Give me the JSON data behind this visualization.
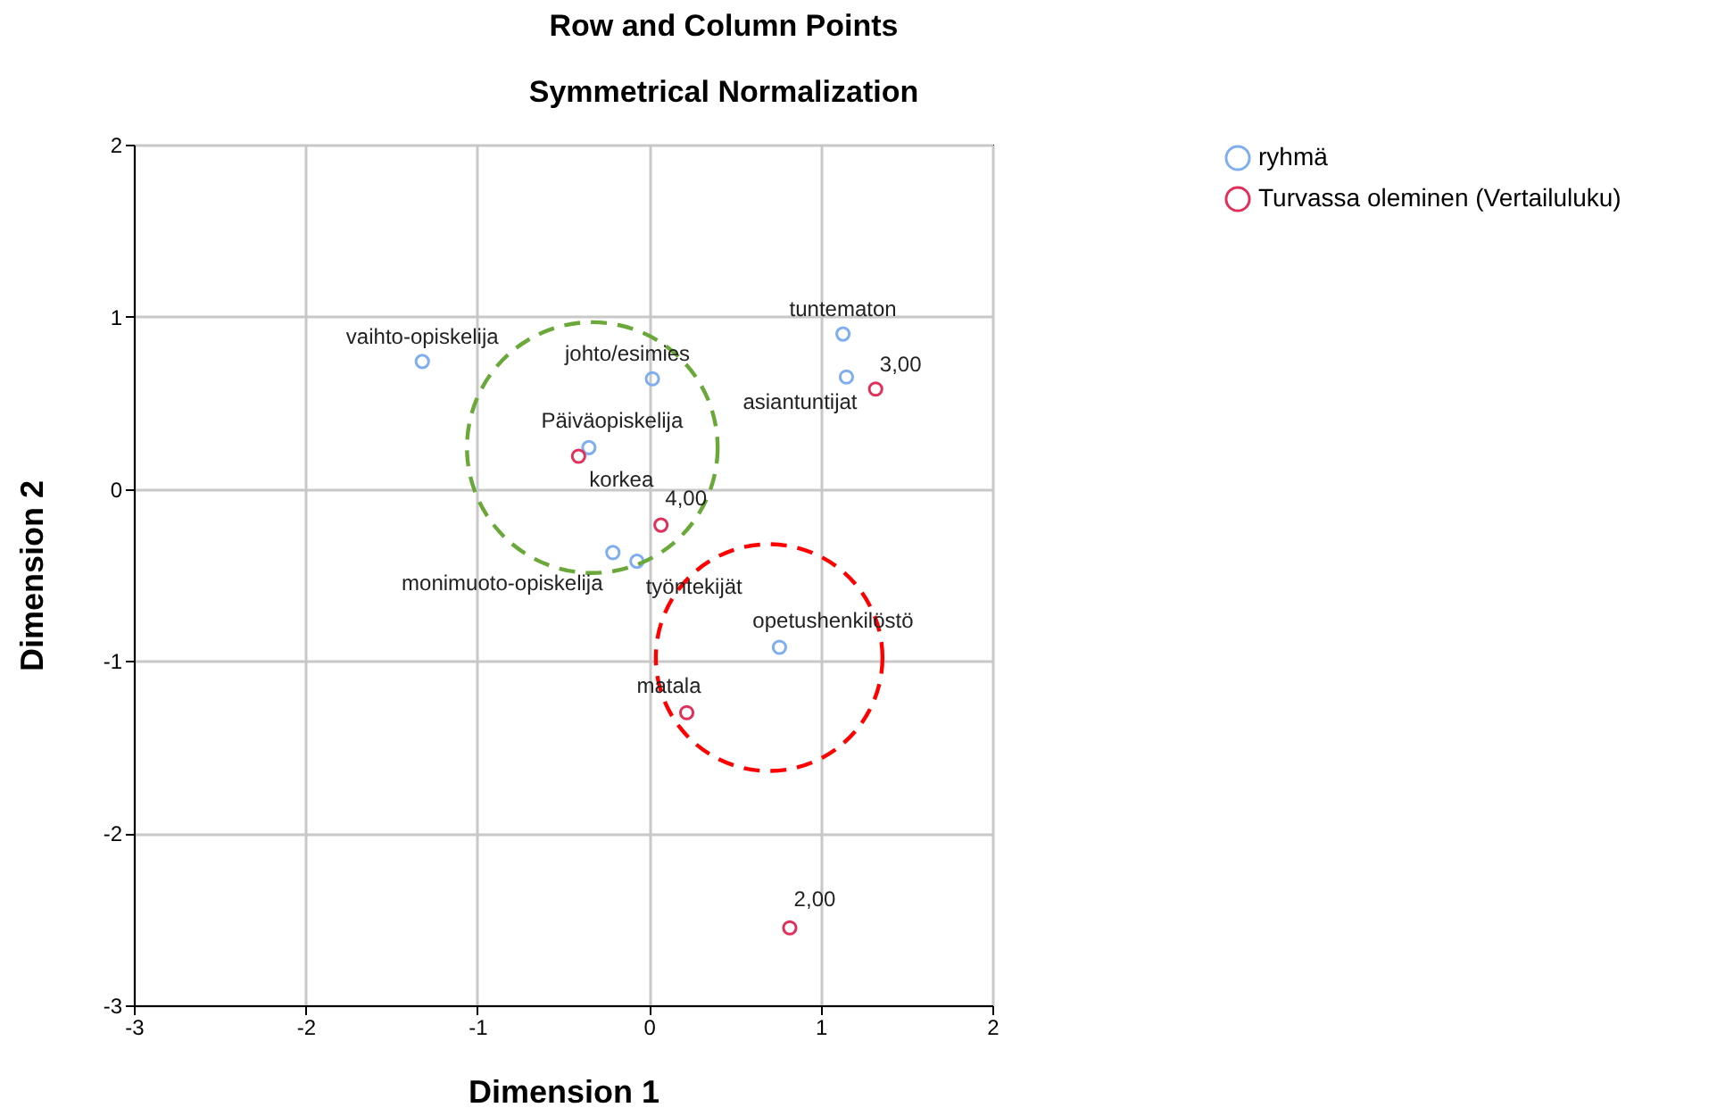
{
  "chart_data": {
    "type": "scatter",
    "title": "Row and Column Points",
    "subtitle": "Symmetrical Normalization",
    "xlabel": "Dimension 1",
    "ylabel": "Dimension 2",
    "series": [
      {
        "name": "ryhmä",
        "color": "#7eaef0",
        "x": [
          -1.32,
          0.02,
          1.13,
          1.15,
          -0.35,
          -0.21,
          -0.07,
          0.76
        ],
        "values": [
          0.74,
          0.64,
          0.9,
          0.65,
          0.24,
          -0.37,
          -0.42,
          -0.92
        ]
      },
      {
        "name": "Turvassa oleminen (Vertailuluku)",
        "color": "#e0305a",
        "x": [
          1.32,
          -0.41,
          0.07,
          0.22,
          0.82
        ],
        "values": [
          0.58,
          0.19,
          -0.21,
          -1.3,
          -2.55
        ]
      }
    ],
    "annotations": [
      {
        "text": "vaihto-opiskelija",
        "x": -1.32,
        "y": 0.74
      },
      {
        "text": "johto/esimies",
        "x": 0.02,
        "y": 0.64
      },
      {
        "text": "tuntematon",
        "x": 1.13,
        "y": 0.9
      },
      {
        "text": "asiantuntijat",
        "x": 1.15,
        "y": 0.65
      },
      {
        "text": "Päiväopiskelija",
        "x": -0.35,
        "y": 0.24
      },
      {
        "text": "monimuoto-opiskelija",
        "x": -0.21,
        "y": -0.37
      },
      {
        "text": "työntekijät",
        "x": -0.07,
        "y": -0.42
      },
      {
        "text": "opetushenkilöstö",
        "x": 0.76,
        "y": -0.92
      },
      {
        "text": "3,00",
        "x": 1.32,
        "y": 0.58
      },
      {
        "text": "korkea",
        "x": -0.41,
        "y": 0.19
      },
      {
        "text": "4,00",
        "x": 0.07,
        "y": -0.21
      },
      {
        "text": "matala",
        "x": 0.22,
        "y": -1.3
      },
      {
        "text": "2,00",
        "x": 0.82,
        "y": -2.55
      }
    ],
    "xlim": [
      -3,
      2
    ],
    "xticks": [
      -3,
      -2,
      -1,
      0,
      1,
      2
    ],
    "ylim": [
      -3,
      2
    ],
    "yticks": [
      -3,
      -2,
      -1,
      0,
      1,
      2
    ],
    "grid": true,
    "legend": "top right",
    "marker": "circle"
  }
}
